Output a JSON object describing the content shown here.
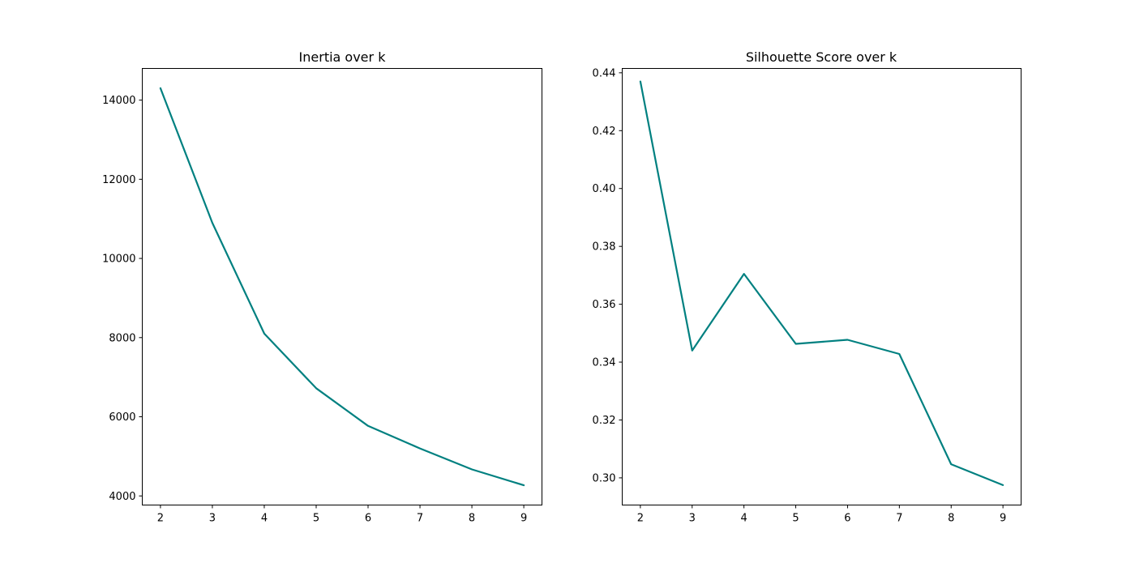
{
  "chart_data": [
    {
      "type": "line",
      "title": "Inertia over k",
      "xlabel": "",
      "ylabel": "",
      "x": [
        2,
        3,
        4,
        5,
        6,
        7,
        8,
        9
      ],
      "series": [
        {
          "values": [
            14300,
            10900,
            8100,
            6720,
            5770,
            5200,
            4670,
            4270
          ],
          "color": "#008080"
        }
      ],
      "xlim": [
        1.65,
        9.35
      ],
      "ylim": [
        3770,
        14800
      ],
      "xticks": [
        "2",
        "3",
        "4",
        "5",
        "6",
        "7",
        "8",
        "9"
      ],
      "yticks": [
        "4000",
        "6000",
        "8000",
        "10000",
        "12000",
        "14000"
      ],
      "ytick_values": [
        4000,
        6000,
        8000,
        10000,
        12000,
        14000
      ],
      "grid": false
    },
    {
      "type": "line",
      "title": "Silhouette Score over k",
      "xlabel": "",
      "ylabel": "",
      "x": [
        2,
        3,
        4,
        5,
        6,
        7,
        8,
        9
      ],
      "series": [
        {
          "values": [
            0.437,
            0.344,
            0.3705,
            0.3463,
            0.3477,
            0.3428,
            0.3047,
            0.2975
          ],
          "color": "#008080"
        }
      ],
      "xlim": [
        1.65,
        9.35
      ],
      "ylim": [
        0.2906,
        0.4415
      ],
      "xticks": [
        "2",
        "3",
        "4",
        "5",
        "6",
        "7",
        "8",
        "9"
      ],
      "yticks": [
        "0.30",
        "0.32",
        "0.34",
        "0.36",
        "0.38",
        "0.40",
        "0.42",
        "0.44"
      ],
      "ytick_values": [
        0.3,
        0.32,
        0.34,
        0.36,
        0.38,
        0.4,
        0.42,
        0.44
      ],
      "grid": false
    }
  ]
}
